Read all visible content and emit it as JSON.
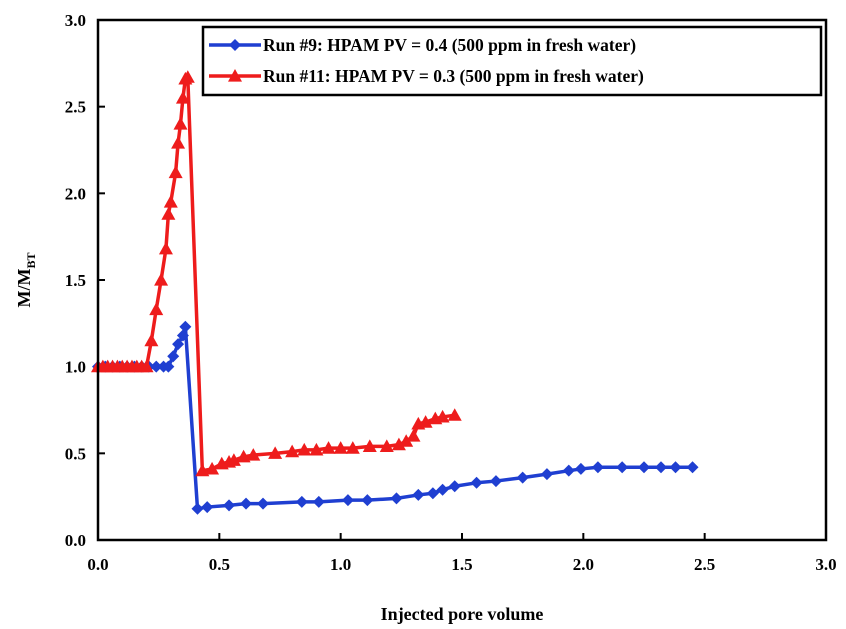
{
  "chart_data": {
    "type": "line",
    "xlabel": "Injected pore volume",
    "ylabel_main": "M/M",
    "ylabel_sub": "BT",
    "xlim": [
      0,
      3
    ],
    "ylim": [
      0,
      3
    ],
    "x_ticks": [
      "0.0",
      "0.5",
      "1.0",
      "1.5",
      "2.0",
      "2.5",
      "3.0"
    ],
    "y_ticks": [
      "0.0",
      "0.5",
      "1.0",
      "1.5",
      "2.0",
      "2.5",
      "3.0"
    ],
    "grid": false,
    "legend_position": "top-right",
    "series": [
      {
        "name": "Run #9: HPAM PV = 0.4 (500 ppm in fresh water)",
        "color": "#1f3fd1",
        "marker": "diamond",
        "x": [
          0.0,
          0.03,
          0.06,
          0.09,
          0.12,
          0.15,
          0.18,
          0.21,
          0.24,
          0.27,
          0.29,
          0.31,
          0.33,
          0.35,
          0.36,
          0.41,
          0.45,
          0.54,
          0.61,
          0.68,
          0.84,
          0.91,
          1.03,
          1.11,
          1.23,
          1.32,
          1.38,
          1.42,
          1.47,
          1.56,
          1.64,
          1.75,
          1.85,
          1.94,
          1.99,
          2.06,
          2.16,
          2.25,
          2.32,
          2.38,
          2.45
        ],
        "y": [
          1.0,
          1.0,
          1.0,
          1.0,
          1.0,
          1.0,
          1.0,
          1.0,
          1.0,
          1.0,
          1.0,
          1.06,
          1.13,
          1.18,
          1.23,
          0.18,
          0.19,
          0.2,
          0.21,
          0.21,
          0.22,
          0.22,
          0.23,
          0.23,
          0.24,
          0.26,
          0.27,
          0.29,
          0.31,
          0.33,
          0.34,
          0.36,
          0.38,
          0.4,
          0.41,
          0.42,
          0.42,
          0.42,
          0.42,
          0.42,
          0.42
        ]
      },
      {
        "name": "Run #11: HPAM PV = 0.3 (500 ppm in fresh water)",
        "color": "#ee1c1c",
        "marker": "triangle",
        "x": [
          0.0,
          0.02,
          0.04,
          0.06,
          0.08,
          0.1,
          0.12,
          0.14,
          0.16,
          0.18,
          0.2,
          0.22,
          0.24,
          0.26,
          0.28,
          0.29,
          0.3,
          0.32,
          0.33,
          0.34,
          0.35,
          0.36,
          0.37,
          0.43,
          0.47,
          0.51,
          0.54,
          0.56,
          0.6,
          0.64,
          0.73,
          0.8,
          0.85,
          0.9,
          0.95,
          1.0,
          1.05,
          1.12,
          1.19,
          1.24,
          1.27,
          1.3,
          1.32,
          1.35,
          1.39,
          1.42,
          1.47
        ],
        "y": [
          1.0,
          1.0,
          1.0,
          1.0,
          1.0,
          1.0,
          1.0,
          1.0,
          1.0,
          1.0,
          1.0,
          1.15,
          1.33,
          1.5,
          1.68,
          1.88,
          1.95,
          2.12,
          2.29,
          2.4,
          2.55,
          2.66,
          2.67,
          0.4,
          0.41,
          0.44,
          0.45,
          0.46,
          0.48,
          0.49,
          0.5,
          0.51,
          0.52,
          0.52,
          0.53,
          0.53,
          0.53,
          0.54,
          0.54,
          0.55,
          0.57,
          0.6,
          0.67,
          0.68,
          0.7,
          0.71,
          0.72
        ]
      }
    ]
  }
}
